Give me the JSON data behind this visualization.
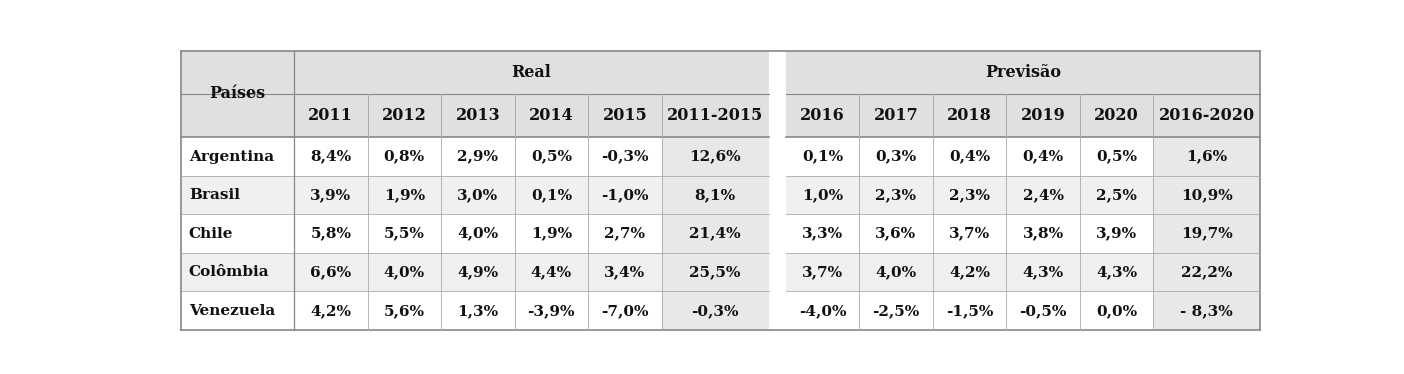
{
  "header_real": "Real",
  "header_previsao": "Previsão",
  "col_paises": "Países",
  "real_years": [
    "2011",
    "2012",
    "2013",
    "2014",
    "2015",
    "2011-2015"
  ],
  "prev_years": [
    "2016",
    "2017",
    "2018",
    "2019",
    "2020",
    "2016-2020"
  ],
  "countries": [
    "Argentina",
    "Brasil",
    "Chile",
    "Colômbia",
    "Venezuela"
  ],
  "real_data": [
    [
      "8,4%",
      "0,8%",
      "2,9%",
      "0,5%",
      "-0,3%",
      "12,6%"
    ],
    [
      "3,9%",
      "1,9%",
      "3,0%",
      "0,1%",
      "-1,0%",
      "8,1%"
    ],
    [
      "5,8%",
      "5,5%",
      "4,0%",
      "1,9%",
      "2,7%",
      "21,4%"
    ],
    [
      "6,6%",
      "4,0%",
      "4,9%",
      "4,4%",
      "3,4%",
      "25,5%"
    ],
    [
      "4,2%",
      "5,6%",
      "1,3%",
      "-3,9%",
      "-7,0%",
      "-0,3%"
    ]
  ],
  "prev_data": [
    [
      "0,1%",
      "0,3%",
      "0,4%",
      "0,4%",
      "0,5%",
      "1,6%"
    ],
    [
      "1,0%",
      "2,3%",
      "2,3%",
      "2,4%",
      "2,5%",
      "10,9%"
    ],
    [
      "3,3%",
      "3,6%",
      "3,7%",
      "3,8%",
      "3,9%",
      "19,7%"
    ],
    [
      "3,7%",
      "4,0%",
      "4,2%",
      "4,3%",
      "4,3%",
      "22,2%"
    ],
    [
      "-4,0%",
      "-2,5%",
      "-1,5%",
      "-0,5%",
      "0,0%",
      "- 8,3%"
    ]
  ],
  "bg_header": "#e0e0e0",
  "bg_white": "#ffffff",
  "bg_light": "#f0f0f0",
  "bg_summary": "#e8e8e8",
  "bg_gap": "#ffffff",
  "text_color": "#111111",
  "line_color": "#aaaaaa",
  "outer_line_color": "#888888",
  "bold_header": true,
  "bold_data": true,
  "fontsize_header": 11.5,
  "fontsize_data": 11.0
}
